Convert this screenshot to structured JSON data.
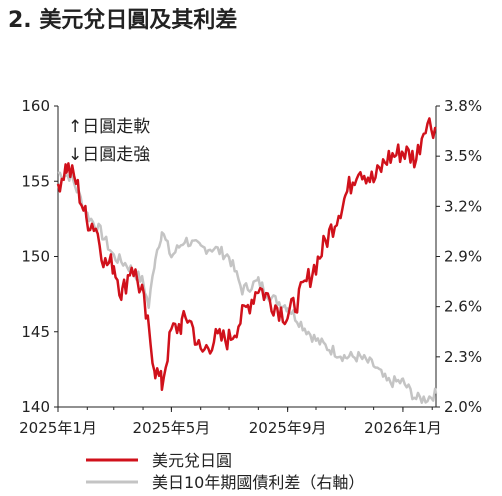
{
  "title": "2. 美元兌日圓及其利差",
  "chart_data": {
    "type": "line",
    "annotations": [
      "↑日圓走軟",
      "↓日圓走強"
    ],
    "x_ticks": [
      "2025年1月",
      "2025年5月",
      "2025年9月",
      "2026年1月"
    ],
    "x_range": [
      "2025-01-01",
      "2026-02-05"
    ],
    "y_left": {
      "range": [
        140,
        160
      ],
      "ticks": [
        "160",
        "155",
        "150",
        "145",
        "140"
      ]
    },
    "y_right": {
      "range": [
        2.0,
        3.8
      ],
      "unit": "%",
      "ticks": [
        "3.8%",
        "3.5%",
        "3.2%",
        "2.9%",
        "2.6%",
        "2.3%",
        "2.0%"
      ]
    },
    "grid": false,
    "legend_position": "bottom",
    "series": [
      {
        "name": "美元兌日圓",
        "color": "#d0111b",
        "axis": "left",
        "x": [
          "2025-01-01",
          "2025-01-10",
          "2025-01-20",
          "2025-01-31",
          "2025-02-10",
          "2025-02-20",
          "2025-03-01",
          "2025-03-10",
          "2025-03-20",
          "2025-03-31",
          "2025-04-07",
          "2025-04-14",
          "2025-04-21",
          "2025-05-01",
          "2025-05-12",
          "2025-05-20",
          "2025-06-01",
          "2025-06-15",
          "2025-07-01",
          "2025-07-15",
          "2025-08-01",
          "2025-08-15",
          "2025-09-01",
          "2025-09-15",
          "2025-10-01",
          "2025-10-15",
          "2025-11-01",
          "2025-11-15",
          "2025-12-01",
          "2025-12-15",
          "2026-01-01",
          "2026-01-15",
          "2026-01-25",
          "2026-02-05"
        ],
        "y": [
          154.8,
          156.0,
          155.0,
          152.5,
          152.0,
          149.5,
          149.5,
          147.5,
          149.5,
          147.5,
          145.0,
          142.5,
          141.5,
          145.0,
          145.5,
          146.0,
          143.5,
          144.5,
          144.5,
          146.0,
          148.0,
          147.0,
          146.0,
          147.5,
          149.5,
          151.5,
          154.0,
          156.0,
          155.0,
          156.5,
          157.0,
          156.5,
          159.0,
          158.5
        ]
      },
      {
        "name": "美日10年期國債利差（右軸）",
        "color": "#c4c4c4",
        "axis": "right",
        "x": [
          "2025-01-01",
          "2025-01-15",
          "2025-02-01",
          "2025-02-15",
          "2025-03-01",
          "2025-03-15",
          "2025-04-01",
          "2025-04-07",
          "2025-04-14",
          "2025-04-21",
          "2025-05-01",
          "2025-05-15",
          "2025-06-01",
          "2025-06-15",
          "2025-07-01",
          "2025-07-15",
          "2025-08-01",
          "2025-08-15",
          "2025-09-01",
          "2025-09-15",
          "2025-10-01",
          "2025-10-15",
          "2025-11-01",
          "2025-11-15",
          "2025-12-01",
          "2025-12-15",
          "2026-01-01",
          "2026-01-15",
          "2026-01-25",
          "2026-02-05"
        ],
        "y": [
          3.4,
          3.38,
          3.15,
          3.05,
          2.9,
          2.85,
          2.75,
          2.6,
          2.9,
          3.05,
          2.9,
          3.0,
          2.95,
          2.95,
          2.9,
          2.7,
          2.75,
          2.65,
          2.6,
          2.5,
          2.4,
          2.35,
          2.3,
          2.3,
          2.25,
          2.15,
          2.15,
          2.05,
          2.05,
          2.08
        ]
      }
    ]
  }
}
